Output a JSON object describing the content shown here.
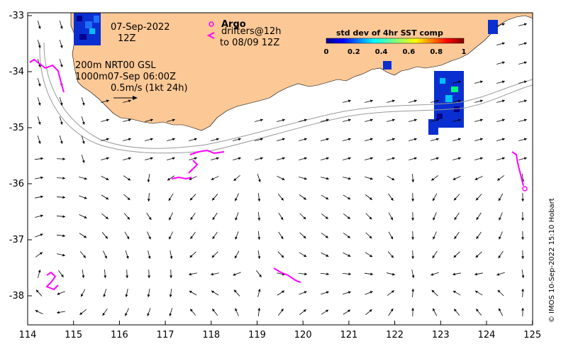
{
  "map": {
    "x_ticks": [
      "114",
      "115",
      "116",
      "117",
      "118",
      "119",
      "120",
      "121",
      "122",
      "123",
      "124",
      "125"
    ],
    "y_ticks": [
      "-33",
      "-34",
      "-35",
      "-36",
      "-37",
      "-38"
    ],
    "date_line1": "07-Sep-2022",
    "date_line2": "12Z",
    "argo_label": "Argo",
    "drifters_line1": "drifters@12h",
    "drifters_line2": "to 08/09 12Z",
    "depth_line1": "200m  NRT00 GSL",
    "depth_line2": "1000m07-Sep 06:00Z",
    "scale_label": "0.5m/s (1kt 24h)",
    "colorbar_title": "std dev of 4hr SST comp",
    "colorbar_ticks": [
      "0",
      "0.2",
      "0.4",
      "0.6",
      "0.8",
      "1"
    ],
    "credit": "© IMOS 10-Sep-2022 15:10 Hobart",
    "colors": {
      "land": "#fcc896",
      "drifter": "#ff00ff",
      "arrow": "#000000",
      "contour": "#999999"
    }
  }
}
